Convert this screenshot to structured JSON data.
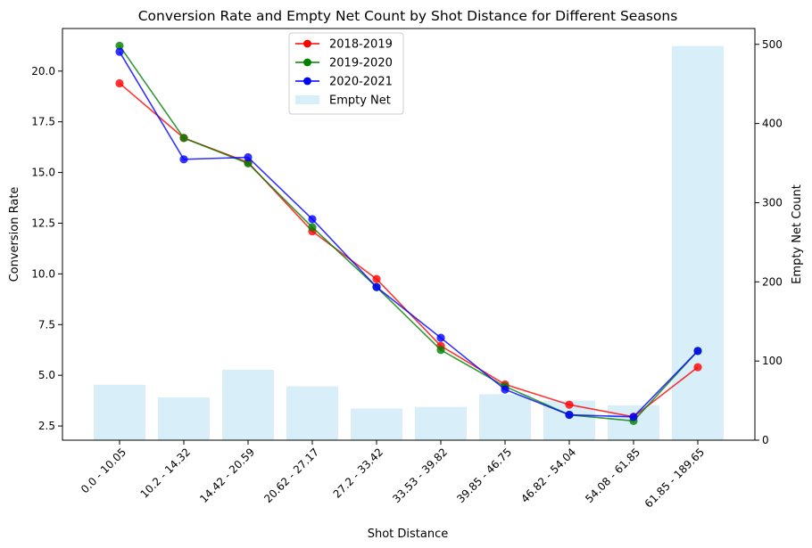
{
  "chart_data": {
    "type": "bar+line",
    "title": "Conversion Rate and Empty Net Count by Shot Distance for Different Seasons",
    "xlabel": "Shot Distance",
    "ylabel_left": "Conversion Rate",
    "ylabel_right": "Empty Net Count",
    "categories": [
      "0.0 - 10.05",
      "10.2 - 14.32",
      "14.42 - 20.59",
      "20.62 - 27.17",
      "27.2 - 33.42",
      "33.53 - 39.82",
      "39.85 - 46.75",
      "46.82 - 54.04",
      "54.08 - 61.85",
      "61.85 - 189.65"
    ],
    "yticks_left": [
      "2.5",
      "5.0",
      "7.5",
      "10.0",
      "12.5",
      "15.0",
      "17.5",
      "20.0"
    ],
    "yticks_right": [
      "0",
      "100",
      "200",
      "300",
      "400",
      "500"
    ],
    "ylim_left": [
      1.8,
      22.1
    ],
    "ylim_right": [
      0,
      520
    ],
    "legend_position": "upper center",
    "bars": {
      "name": "Empty Net",
      "color": "#87ceeb",
      "values": [
        70,
        54,
        89,
        68,
        40,
        42,
        58,
        50,
        44,
        498
      ]
    },
    "series": [
      {
        "name": "2018-2019",
        "color": "#ff0000",
        "values": [
          19.4,
          16.7,
          15.5,
          12.1,
          9.75,
          6.45,
          4.55,
          3.55,
          2.95,
          5.4
        ]
      },
      {
        "name": "2019-2020",
        "color": "#008000",
        "values": [
          21.25,
          16.7,
          15.45,
          12.3,
          9.35,
          6.25,
          4.45,
          3.05,
          2.75,
          6.2
        ]
      },
      {
        "name": "2020-2021",
        "color": "#0000ff",
        "values": [
          20.95,
          15.65,
          15.75,
          12.7,
          9.35,
          6.85,
          4.3,
          3.05,
          2.95,
          6.2
        ]
      }
    ]
  }
}
